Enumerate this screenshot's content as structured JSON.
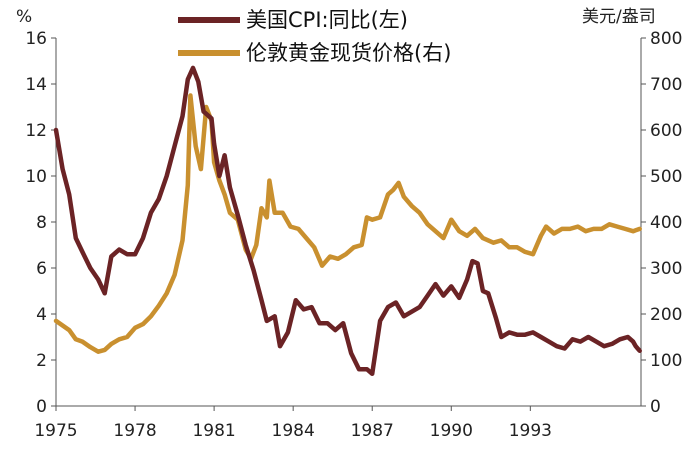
{
  "chart_data": {
    "type": "line",
    "y_left_unit": "%",
    "y_right_unit": "美元/盎司",
    "x_tick_labels": [
      "1975",
      "1978",
      "1981",
      "1984",
      "1987",
      "1990",
      "1993"
    ],
    "x_tick_values": [
      1975,
      1978,
      1981,
      1984,
      1987,
      1990,
      1993
    ],
    "xlim": [
      1975,
      1997.2
    ],
    "ylim_left": [
      0,
      16
    ],
    "ylim_right": [
      0,
      800
    ],
    "y_left_ticks": [
      "0",
      "2",
      "4",
      "6",
      "8",
      "10",
      "12",
      "14",
      "16"
    ],
    "y_right_ticks": [
      "0",
      "100",
      "200",
      "300",
      "400",
      "500",
      "600",
      "700",
      "800"
    ],
    "legend_position": "top-center",
    "colors": {
      "cpi": "#6b2325",
      "gold": "#c9902f"
    },
    "series": [
      {
        "name": "美国CPI:同比(左)",
        "axis": "left",
        "points": [
          [
            1975.0,
            12.0
          ],
          [
            1975.25,
            10.3
          ],
          [
            1975.5,
            9.2
          ],
          [
            1975.75,
            7.3
          ],
          [
            1976.0,
            6.7
          ],
          [
            1976.3,
            6.0
          ],
          [
            1976.6,
            5.5
          ],
          [
            1976.85,
            4.9
          ],
          [
            1977.1,
            6.5
          ],
          [
            1977.4,
            6.8
          ],
          [
            1977.7,
            6.6
          ],
          [
            1978.0,
            6.6
          ],
          [
            1978.3,
            7.3
          ],
          [
            1978.6,
            8.4
          ],
          [
            1978.9,
            9.0
          ],
          [
            1979.2,
            10.0
          ],
          [
            1979.5,
            11.3
          ],
          [
            1979.8,
            12.6
          ],
          [
            1980.0,
            14.2
          ],
          [
            1980.2,
            14.7
          ],
          [
            1980.4,
            14.1
          ],
          [
            1980.6,
            12.8
          ],
          [
            1980.9,
            12.5
          ],
          [
            1981.0,
            11.4
          ],
          [
            1981.2,
            10.0
          ],
          [
            1981.4,
            10.9
          ],
          [
            1981.6,
            9.5
          ],
          [
            1981.9,
            8.3
          ],
          [
            1982.2,
            7.0
          ],
          [
            1982.5,
            5.9
          ],
          [
            1982.8,
            4.6
          ],
          [
            1983.0,
            3.7
          ],
          [
            1983.3,
            3.9
          ],
          [
            1983.5,
            2.6
          ],
          [
            1983.8,
            3.2
          ],
          [
            1984.1,
            4.6
          ],
          [
            1984.4,
            4.2
          ],
          [
            1984.7,
            4.3
          ],
          [
            1985.0,
            3.6
          ],
          [
            1985.3,
            3.6
          ],
          [
            1985.6,
            3.3
          ],
          [
            1985.9,
            3.6
          ],
          [
            1986.2,
            2.3
          ],
          [
            1986.5,
            1.6
          ],
          [
            1986.8,
            1.6
          ],
          [
            1987.0,
            1.4
          ],
          [
            1987.3,
            3.7
          ],
          [
            1987.6,
            4.3
          ],
          [
            1987.9,
            4.5
          ],
          [
            1988.2,
            3.9
          ],
          [
            1988.5,
            4.1
          ],
          [
            1988.8,
            4.3
          ],
          [
            1989.1,
            4.8
          ],
          [
            1989.4,
            5.3
          ],
          [
            1989.7,
            4.8
          ],
          [
            1990.0,
            5.2
          ],
          [
            1990.3,
            4.7
          ],
          [
            1990.6,
            5.5
          ],
          [
            1990.8,
            6.3
          ],
          [
            1991.0,
            6.2
          ],
          [
            1991.2,
            5.0
          ],
          [
            1991.4,
            4.9
          ],
          [
            1991.7,
            3.8
          ],
          [
            1991.9,
            3.0
          ],
          [
            1992.2,
            3.2
          ],
          [
            1992.5,
            3.1
          ],
          [
            1992.8,
            3.1
          ],
          [
            1993.1,
            3.2
          ],
          [
            1993.4,
            3.0
          ],
          [
            1993.7,
            2.8
          ],
          [
            1994.0,
            2.6
          ],
          [
            1994.3,
            2.5
          ],
          [
            1994.6,
            2.9
          ],
          [
            1994.9,
            2.8
          ],
          [
            1995.2,
            3.0
          ],
          [
            1995.5,
            2.8
          ],
          [
            1995.8,
            2.6
          ],
          [
            1996.1,
            2.7
          ],
          [
            1996.4,
            2.9
          ],
          [
            1996.7,
            3.0
          ],
          [
            1996.9,
            2.8
          ],
          [
            1997.0,
            2.6
          ],
          [
            1997.15,
            2.4
          ]
        ]
      },
      {
        "name": "伦敦黄金现货价格(右)",
        "axis": "right",
        "points": [
          [
            1975.0,
            185
          ],
          [
            1975.25,
            175
          ],
          [
            1975.5,
            165
          ],
          [
            1975.75,
            145
          ],
          [
            1976.0,
            140
          ],
          [
            1976.3,
            128
          ],
          [
            1976.6,
            118
          ],
          [
            1976.85,
            122
          ],
          [
            1977.1,
            135
          ],
          [
            1977.4,
            145
          ],
          [
            1977.7,
            150
          ],
          [
            1978.0,
            170
          ],
          [
            1978.3,
            178
          ],
          [
            1978.6,
            195
          ],
          [
            1978.9,
            218
          ],
          [
            1979.2,
            245
          ],
          [
            1979.5,
            285
          ],
          [
            1979.8,
            360
          ],
          [
            1980.0,
            480
          ],
          [
            1980.1,
            675
          ],
          [
            1980.3,
            565
          ],
          [
            1980.5,
            515
          ],
          [
            1980.7,
            650
          ],
          [
            1980.9,
            620
          ],
          [
            1981.0,
            530
          ],
          [
            1981.2,
            490
          ],
          [
            1981.4,
            460
          ],
          [
            1981.6,
            420
          ],
          [
            1981.9,
            405
          ],
          [
            1982.2,
            340
          ],
          [
            1982.4,
            320
          ],
          [
            1982.6,
            350
          ],
          [
            1982.8,
            430
          ],
          [
            1983.0,
            410
          ],
          [
            1983.1,
            490
          ],
          [
            1983.3,
            420
          ],
          [
            1983.6,
            420
          ],
          [
            1983.9,
            390
          ],
          [
            1984.2,
            385
          ],
          [
            1984.5,
            365
          ],
          [
            1984.8,
            345
          ],
          [
            1985.1,
            305
          ],
          [
            1985.4,
            325
          ],
          [
            1985.7,
            320
          ],
          [
            1986.0,
            330
          ],
          [
            1986.3,
            345
          ],
          [
            1986.6,
            350
          ],
          [
            1986.8,
            410
          ],
          [
            1987.0,
            405
          ],
          [
            1987.3,
            410
          ],
          [
            1987.6,
            460
          ],
          [
            1987.8,
            470
          ],
          [
            1988.0,
            485
          ],
          [
            1988.2,
            455
          ],
          [
            1988.5,
            435
          ],
          [
            1988.8,
            420
          ],
          [
            1989.1,
            395
          ],
          [
            1989.4,
            380
          ],
          [
            1989.7,
            365
          ],
          [
            1990.0,
            405
          ],
          [
            1990.3,
            380
          ],
          [
            1990.6,
            370
          ],
          [
            1990.9,
            385
          ],
          [
            1991.2,
            365
          ],
          [
            1991.6,
            355
          ],
          [
            1991.9,
            360
          ],
          [
            1992.2,
            345
          ],
          [
            1992.5,
            345
          ],
          [
            1992.8,
            335
          ],
          [
            1993.1,
            330
          ],
          [
            1993.4,
            370
          ],
          [
            1993.6,
            390
          ],
          [
            1993.9,
            375
          ],
          [
            1994.2,
            385
          ],
          [
            1994.5,
            385
          ],
          [
            1994.8,
            390
          ],
          [
            1995.1,
            380
          ],
          [
            1995.4,
            385
          ],
          [
            1995.7,
            385
          ],
          [
            1996.0,
            395
          ],
          [
            1996.3,
            390
          ],
          [
            1996.6,
            385
          ],
          [
            1996.9,
            380
          ],
          [
            1997.15,
            385
          ]
        ]
      }
    ]
  }
}
